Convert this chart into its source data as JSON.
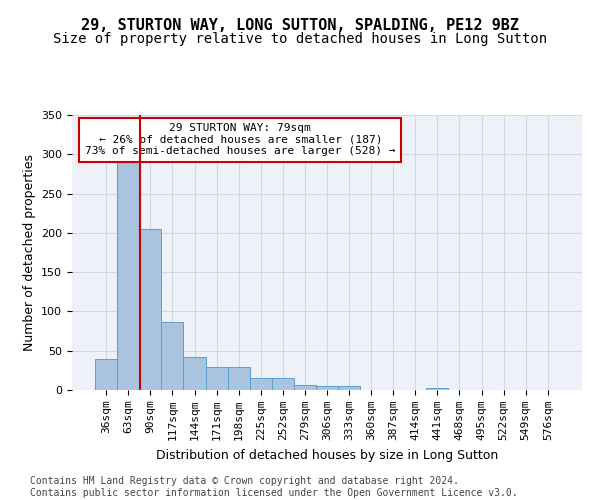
{
  "title1": "29, STURTON WAY, LONG SUTTON, SPALDING, PE12 9BZ",
  "title2": "Size of property relative to detached houses in Long Sutton",
  "xlabel": "Distribution of detached houses by size in Long Sutton",
  "ylabel": "Number of detached properties",
  "categories": [
    "36sqm",
    "63sqm",
    "90sqm",
    "117sqm",
    "144sqm",
    "171sqm",
    "198sqm",
    "225sqm",
    "252sqm",
    "279sqm",
    "306sqm",
    "333sqm",
    "360sqm",
    "387sqm",
    "414sqm",
    "441sqm",
    "468sqm",
    "495sqm",
    "522sqm",
    "549sqm",
    "576sqm"
  ],
  "values": [
    40,
    290,
    205,
    87,
    42,
    29,
    29,
    15,
    15,
    7,
    5,
    5,
    0,
    0,
    0,
    3,
    0,
    0,
    0,
    0,
    0
  ],
  "bar_color": "#aac4e0",
  "bar_edge_color": "#5a9fd4",
  "property_line_x": 1.55,
  "annotation_text": "29 STURTON WAY: 79sqm\n← 26% of detached houses are smaller (187)\n73% of semi-detached houses are larger (528) →",
  "annotation_box_color": "#ffffff",
  "annotation_box_edge": "#cc0000",
  "vline_color": "#cc0000",
  "grid_color": "#d0d8e8",
  "background_color": "#eef2f8",
  "ylim": [
    0,
    350
  ],
  "yticks": [
    0,
    50,
    100,
    150,
    200,
    250,
    300,
    350
  ],
  "footer": "Contains HM Land Registry data © Crown copyright and database right 2024.\nContains public sector information licensed under the Open Government Licence v3.0.",
  "title1_fontsize": 11,
  "title2_fontsize": 10,
  "xlabel_fontsize": 9,
  "ylabel_fontsize": 9,
  "tick_fontsize": 8,
  "annotation_fontsize": 8,
  "footer_fontsize": 7
}
